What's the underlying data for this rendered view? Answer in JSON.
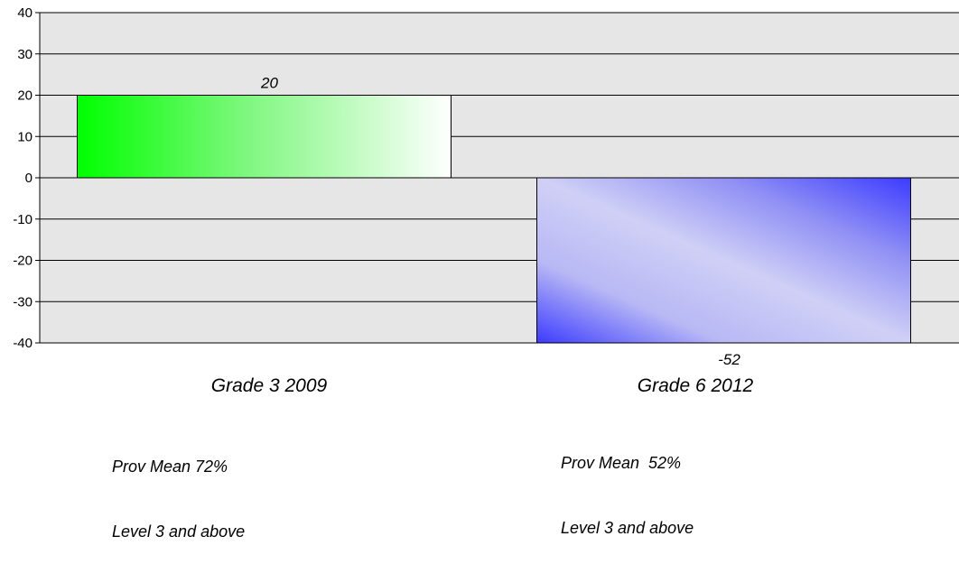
{
  "chart_data": {
    "type": "bar",
    "categories": [
      "Grade 3 2009",
      "Grade 6 2012"
    ],
    "values": [
      20,
      -52
    ],
    "data_labels": [
      "20",
      "-52"
    ],
    "ylim": [
      -40,
      40
    ],
    "yticks": [
      40,
      30,
      20,
      10,
      0,
      -10,
      -20,
      -30,
      -40
    ],
    "grid": true,
    "colors": {
      "plot_bg": "#e6e6e6",
      "positive_bar": "#00ff00",
      "negative_bar": "#3b3bff"
    },
    "annotations": [
      {
        "line1": "Prov Mean 72%",
        "line2": "Level 3 and above"
      },
      {
        "line1": "Prov Mean  52%",
        "line2": "Level 3 and above"
      }
    ]
  }
}
